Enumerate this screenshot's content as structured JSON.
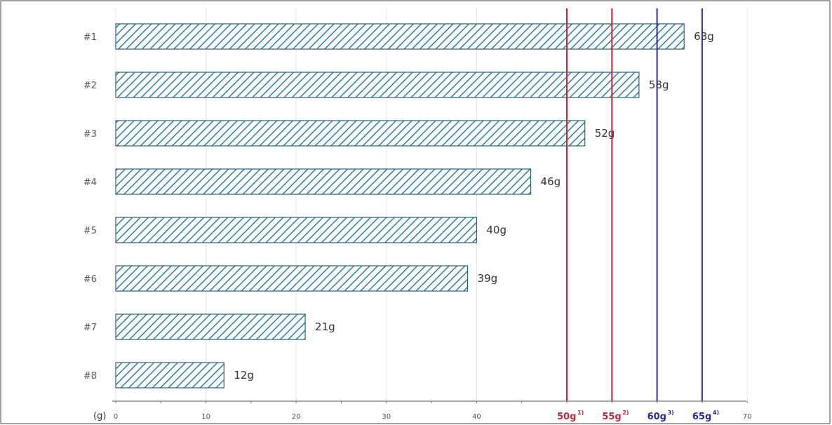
{
  "chart_data": {
    "type": "bar",
    "orientation": "horizontal",
    "unit_label": "(g)",
    "categories": [
      "#1",
      "#2",
      "#3",
      "#4",
      "#5",
      "#6",
      "#7",
      "#8"
    ],
    "values": [
      63,
      58,
      52,
      46,
      40,
      39,
      21,
      12
    ],
    "data_labels": [
      "63g",
      "58g",
      "52g",
      "46g",
      "40g",
      "39g",
      "21g",
      "12g"
    ],
    "x_ticks": [
      0,
      10,
      20,
      30,
      40,
      70
    ],
    "xlim": [
      0,
      70
    ],
    "grid": true,
    "bar_style": "diagonal-hatch",
    "bar_color": "#2e7fa3",
    "reference_lines": [
      {
        "value": 50,
        "label": "50g",
        "sup": "1)",
        "color": "#c0283c"
      },
      {
        "value": 55,
        "label": "55g",
        "sup": "2)",
        "color": "#c0283c"
      },
      {
        "value": 60,
        "label": "60g",
        "sup": "3)",
        "color": "#2a2a9e"
      },
      {
        "value": 65,
        "label": "65g",
        "sup": "4)",
        "color": "#2a2a9e"
      }
    ]
  }
}
